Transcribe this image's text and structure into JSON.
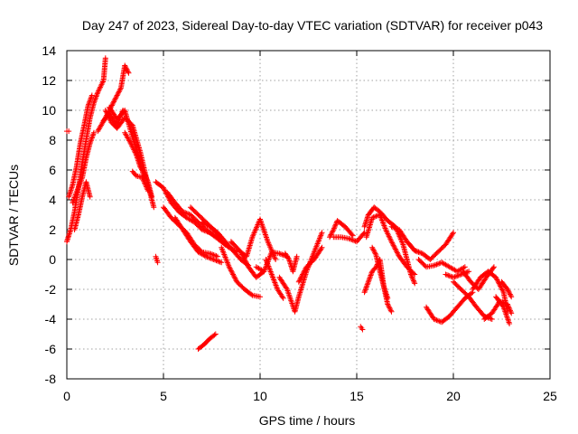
{
  "chart_data": {
    "type": "scatter",
    "title": "Day 247 of 2023, Sidereal Day-to-day VTEC variation (SDTVAR) for receiver p043",
    "xlabel": "GPS time / hours",
    "ylabel": "SDTVAR / TECUs",
    "xlim": [
      0,
      25
    ],
    "ylim": [
      -8,
      14
    ],
    "xticks": [
      0,
      5,
      10,
      15,
      20,
      25
    ],
    "yticks": [
      -8,
      -6,
      -4,
      -2,
      0,
      2,
      4,
      6,
      8,
      10,
      12,
      14
    ],
    "grid": true,
    "marker": "+",
    "series": [
      {
        "name": "SDTVAR",
        "color": "#ff0000",
        "tracks": [
          [
            [
              0.0,
              8.6
            ],
            [
              0.1,
              8.6
            ]
          ],
          [
            [
              0.0,
              1.2
            ],
            [
              0.2,
              2.0
            ],
            [
              0.4,
              3.2
            ],
            [
              0.6,
              4.8
            ],
            [
              0.8,
              6.5
            ],
            [
              1.0,
              8.0
            ],
            [
              1.2,
              9.5
            ],
            [
              1.4,
              10.5
            ],
            [
              1.6,
              11.2
            ],
            [
              1.9,
              12.0
            ],
            [
              2.0,
              13.5
            ]
          ],
          [
            [
              0.1,
              4.2
            ],
            [
              0.3,
              5.0
            ],
            [
              0.5,
              6.2
            ],
            [
              0.7,
              7.8
            ],
            [
              0.9,
              9.0
            ],
            [
              1.1,
              10.3
            ],
            [
              1.3,
              11.0
            ]
          ],
          [
            [
              0.3,
              3.8
            ],
            [
              0.5,
              4.5
            ],
            [
              0.8,
              5.5
            ],
            [
              1.0,
              6.8
            ],
            [
              1.2,
              7.8
            ],
            [
              1.4,
              8.5
            ]
          ],
          [
            [
              0.4,
              2.0
            ],
            [
              0.6,
              3.0
            ],
            [
              0.8,
              4.2
            ],
            [
              1.0,
              5.2
            ],
            [
              1.2,
              4.2
            ]
          ],
          [
            [
              1.6,
              8.6
            ],
            [
              2.0,
              9.5
            ],
            [
              2.4,
              10.5
            ],
            [
              2.8,
              11.5
            ],
            [
              3.0,
              13.0
            ],
            [
              3.2,
              12.5
            ]
          ],
          [
            [
              2.0,
              10.0
            ],
            [
              2.3,
              9.2
            ],
            [
              2.6,
              8.8
            ],
            [
              3.0,
              9.5
            ],
            [
              3.4,
              9.0
            ],
            [
              3.8,
              7.2
            ],
            [
              4.2,
              5.0
            ],
            [
              4.5,
              3.5
            ]
          ],
          [
            [
              2.2,
              10.2
            ],
            [
              2.6,
              9.4
            ],
            [
              3.0,
              10.0
            ],
            [
              3.4,
              8.2
            ],
            [
              3.8,
              6.5
            ],
            [
              4.0,
              5.5
            ]
          ],
          [
            [
              1.9,
              9.3
            ],
            [
              2.2,
              9.8
            ],
            [
              2.6,
              9.0
            ],
            [
              2.9,
              10.0
            ]
          ],
          [
            [
              3.0,
              8.5
            ],
            [
              3.3,
              7.8
            ],
            [
              3.6,
              7.0
            ],
            [
              3.8,
              6.2
            ],
            [
              4.0,
              5.8
            ],
            [
              4.2,
              5.2
            ],
            [
              4.4,
              4.2
            ]
          ],
          [
            [
              3.4,
              5.9
            ],
            [
              3.6,
              5.6
            ],
            [
              3.9,
              5.5
            ],
            [
              4.2,
              4.6
            ]
          ],
          [
            [
              4.6,
              0.2
            ],
            [
              4.7,
              -0.2
            ]
          ],
          [
            [
              4.6,
              5.2
            ],
            [
              5.0,
              4.8
            ],
            [
              5.4,
              3.8
            ],
            [
              5.8,
              3.2
            ],
            [
              6.2,
              2.8
            ],
            [
              6.6,
              2.5
            ],
            [
              7.0,
              2.0
            ],
            [
              7.4,
              1.8
            ],
            [
              7.8,
              1.5
            ],
            [
              8.2,
              1.0
            ]
          ],
          [
            [
              5.0,
              3.5
            ],
            [
              5.4,
              2.8
            ],
            [
              5.8,
              2.3
            ],
            [
              6.2,
              1.8
            ],
            [
              6.6,
              1.0
            ],
            [
              7.0,
              0.5
            ],
            [
              7.4,
              0.4
            ],
            [
              7.8,
              0.2
            ]
          ],
          [
            [
              5.2,
              4.5
            ],
            [
              5.6,
              3.8
            ],
            [
              6.0,
              3.2
            ],
            [
              6.4,
              3.0
            ],
            [
              6.8,
              2.5
            ],
            [
              7.2,
              2.0
            ],
            [
              7.6,
              1.6
            ],
            [
              8.0,
              1.2
            ],
            [
              8.4,
              0.8
            ],
            [
              8.8,
              0.5
            ]
          ],
          [
            [
              5.6,
              2.8
            ],
            [
              6.0,
              2.0
            ],
            [
              6.4,
              1.2
            ],
            [
              6.8,
              0.5
            ],
            [
              7.2,
              0.2
            ],
            [
              7.6,
              0.0
            ],
            [
              8.0,
              -0.2
            ]
          ],
          [
            [
              6.4,
              3.5
            ],
            [
              6.8,
              3.0
            ],
            [
              7.2,
              2.5
            ],
            [
              7.6,
              2.0
            ],
            [
              8.0,
              1.5
            ]
          ],
          [
            [
              7.0,
              2.5
            ],
            [
              7.4,
              2.2
            ],
            [
              7.8,
              1.8
            ],
            [
              8.2,
              1.2
            ],
            [
              8.6,
              0.6
            ],
            [
              9.0,
              0.0
            ],
            [
              9.4,
              -0.4
            ]
          ],
          [
            [
              6.8,
              -6.0
            ],
            [
              7.1,
              -5.7
            ],
            [
              7.4,
              -5.3
            ],
            [
              7.7,
              -5.0
            ]
          ],
          [
            [
              8.0,
              0.8
            ],
            [
              8.4,
              -0.5
            ],
            [
              8.8,
              -1.5
            ],
            [
              9.2,
              -2.0
            ],
            [
              9.6,
              -2.4
            ],
            [
              10.0,
              -2.5
            ]
          ],
          [
            [
              8.5,
              1.2
            ],
            [
              9.0,
              0.5
            ],
            [
              9.4,
              -0.5
            ],
            [
              9.8,
              -1.2
            ],
            [
              10.2,
              -0.8
            ]
          ],
          [
            [
              9.0,
              0.5
            ],
            [
              9.3,
              0.2
            ],
            [
              9.6,
              1.5
            ],
            [
              10.0,
              2.7
            ],
            [
              10.4,
              1.2
            ],
            [
              10.8,
              0.0
            ]
          ],
          [
            [
              9.8,
              -0.5
            ],
            [
              10.2,
              -0.8
            ],
            [
              10.6,
              0.5
            ],
            [
              11.0,
              0.4
            ],
            [
              11.4,
              0.2
            ]
          ],
          [
            [
              10.3,
              0.0
            ],
            [
              10.6,
              -1.0
            ],
            [
              10.9,
              -2.0
            ],
            [
              11.2,
              -2.6
            ]
          ],
          [
            [
              11.0,
              -1.2
            ],
            [
              11.4,
              -2.0
            ],
            [
              11.8,
              -3.5
            ],
            [
              12.0,
              -2.5
            ],
            [
              12.4,
              -0.8
            ],
            [
              12.8,
              0.5
            ],
            [
              13.2,
              1.8
            ]
          ],
          [
            [
              12.0,
              -1.5
            ],
            [
              12.4,
              -0.5
            ],
            [
              12.8,
              0.0
            ],
            [
              13.2,
              0.8
            ]
          ],
          [
            [
              11.3,
              0.4
            ],
            [
              11.5,
              0.0
            ],
            [
              11.7,
              -0.8
            ],
            [
              11.9,
              0.2
            ]
          ],
          [
            [
              13.6,
              1.5
            ],
            [
              13.8,
              2.0
            ],
            [
              14.0,
              2.6
            ],
            [
              14.4,
              2.2
            ],
            [
              14.8,
              1.6
            ]
          ],
          [
            [
              13.8,
              1.5
            ],
            [
              14.2,
              1.5
            ],
            [
              14.6,
              1.4
            ],
            [
              15.0,
              1.2
            ],
            [
              15.4,
              1.8
            ]
          ],
          [
            [
              15.2,
              -4.5
            ],
            [
              15.3,
              -4.7
            ]
          ],
          [
            [
              15.4,
              2.2
            ],
            [
              15.6,
              3.0
            ],
            [
              15.9,
              3.5
            ],
            [
              16.2,
              3.2
            ],
            [
              16.6,
              2.6
            ],
            [
              17.0,
              2.2
            ],
            [
              17.4,
              1.0
            ],
            [
              17.8,
              -1.0
            ],
            [
              18.0,
              -1.6
            ]
          ],
          [
            [
              15.5,
              1.5
            ],
            [
              15.8,
              2.8
            ],
            [
              16.2,
              3.0
            ],
            [
              16.5,
              2.0
            ],
            [
              16.8,
              1.2
            ],
            [
              17.2,
              0.2
            ],
            [
              17.6,
              -0.5
            ],
            [
              18.0,
              -1.0
            ]
          ],
          [
            [
              15.4,
              -2.2
            ],
            [
              15.6,
              -1.5
            ],
            [
              15.8,
              -0.8
            ],
            [
              16.0,
              -0.5
            ],
            [
              16.2,
              0.0
            ],
            [
              16.4,
              -1.8
            ],
            [
              16.6,
              -3.0
            ],
            [
              16.8,
              -3.5
            ]
          ],
          [
            [
              15.8,
              0.8
            ],
            [
              16.0,
              0.3
            ],
            [
              16.2,
              -0.8
            ],
            [
              16.4,
              -1.8
            ],
            [
              16.6,
              -2.6
            ]
          ],
          [
            [
              16.8,
              2.2
            ],
            [
              17.2,
              2.0
            ],
            [
              17.6,
              1.2
            ],
            [
              18.0,
              0.6
            ],
            [
              18.2,
              0.5
            ]
          ],
          [
            [
              17.6,
              1.2
            ],
            [
              18.0,
              0.6
            ],
            [
              18.4,
              0.4
            ],
            [
              18.8,
              0.0
            ],
            [
              19.2,
              0.5
            ],
            [
              19.6,
              1.0
            ],
            [
              20.0,
              1.8
            ]
          ],
          [
            [
              18.2,
              0.0
            ],
            [
              18.6,
              -0.5
            ],
            [
              19.0,
              -0.4
            ],
            [
              19.4,
              -0.2
            ],
            [
              19.8,
              -0.5
            ],
            [
              20.2,
              -0.8
            ],
            [
              20.6,
              -0.5
            ]
          ],
          [
            [
              18.6,
              -3.2
            ],
            [
              19.0,
              -4.0
            ],
            [
              19.4,
              -4.2
            ],
            [
              19.8,
              -3.8
            ],
            [
              20.2,
              -3.2
            ],
            [
              20.6,
              -2.6
            ],
            [
              21.0,
              -2.2
            ]
          ],
          [
            [
              19.6,
              -1.0
            ],
            [
              20.0,
              -1.2
            ],
            [
              20.4,
              -1.0
            ],
            [
              20.8,
              -0.8
            ]
          ],
          [
            [
              20.0,
              -1.5
            ],
            [
              20.4,
              -2.0
            ],
            [
              20.8,
              -2.5
            ],
            [
              21.2,
              -3.2
            ],
            [
              21.6,
              -3.8
            ],
            [
              22.0,
              -4.0
            ]
          ],
          [
            [
              20.5,
              -0.8
            ],
            [
              20.9,
              -1.5
            ],
            [
              21.3,
              -2.0
            ],
            [
              21.7,
              -1.2
            ],
            [
              22.1,
              -0.5
            ]
          ],
          [
            [
              21.0,
              -2.0
            ],
            [
              21.4,
              -1.2
            ],
            [
              21.8,
              -0.8
            ],
            [
              22.2,
              -1.2
            ],
            [
              22.6,
              -2.2
            ],
            [
              22.8,
              -3.5
            ]
          ],
          [
            [
              21.6,
              -4.0
            ],
            [
              22.0,
              -3.6
            ],
            [
              22.4,
              -2.8
            ],
            [
              22.8,
              -3.0
            ],
            [
              23.0,
              -3.6
            ]
          ],
          [
            [
              22.2,
              -2.5
            ],
            [
              22.6,
              -3.2
            ],
            [
              22.9,
              -4.3
            ]
          ],
          [
            [
              22.5,
              -1.5
            ],
            [
              22.8,
              -2.0
            ],
            [
              23.0,
              -2.5
            ]
          ]
        ]
      }
    ]
  }
}
